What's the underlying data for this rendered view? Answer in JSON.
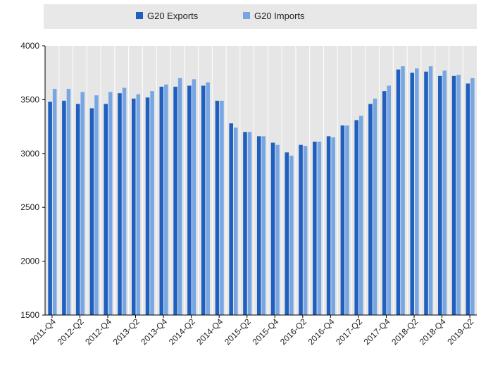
{
  "chart_data": {
    "type": "bar",
    "title": "",
    "xlabel": "",
    "ylabel": "",
    "ylim": [
      1500,
      4000
    ],
    "yticks": [
      1500,
      2000,
      2500,
      3000,
      3500,
      4000
    ],
    "grid": "vertical",
    "legend_position": "top",
    "categories": [
      "2011-Q4",
      "2012-Q1",
      "2012-Q2",
      "2012-Q3",
      "2012-Q4",
      "2013-Q1",
      "2013-Q2",
      "2013-Q3",
      "2013-Q4",
      "2014-Q1",
      "2014-Q2",
      "2014-Q3",
      "2014-Q4",
      "2015-Q1",
      "2015-Q2",
      "2015-Q3",
      "2015-Q4",
      "2016-Q1",
      "2016-Q2",
      "2016-Q3",
      "2016-Q4",
      "2017-Q1",
      "2017-Q2",
      "2017-Q3",
      "2017-Q4",
      "2018-Q1",
      "2018-Q2",
      "2018-Q3",
      "2018-Q4",
      "2019-Q1",
      "2019-Q2"
    ],
    "tick_labels": [
      "2011-Q4",
      "2012-Q2",
      "2012-Q4",
      "2013-Q2",
      "2013-Q4",
      "2014-Q2",
      "2014-Q4",
      "2015-Q2",
      "2015-Q4",
      "2016-Q2",
      "2016-Q4",
      "2017-Q2",
      "2017-Q4",
      "2018-Q2",
      "2018-Q4",
      "2019-Q2"
    ],
    "series": [
      {
        "name": "G20 Exports",
        "color": "#1f5fbf",
        "values": [
          3480,
          3490,
          3460,
          3420,
          3460,
          3560,
          3510,
          3520,
          3620,
          3620,
          3630,
          3630,
          3490,
          3280,
          3200,
          3160,
          3100,
          3010,
          3080,
          3110,
          3160,
          3260,
          3310,
          3460,
          3580,
          3780,
          3750,
          3760,
          3720,
          3720,
          3650
        ]
      },
      {
        "name": "G20 Imports",
        "color": "#77a6e3",
        "values": [
          3600,
          3600,
          3570,
          3540,
          3570,
          3610,
          3550,
          3580,
          3640,
          3700,
          3690,
          3660,
          3490,
          3240,
          3200,
          3160,
          3080,
          2980,
          3070,
          3110,
          3150,
          3260,
          3350,
          3510,
          3630,
          3810,
          3790,
          3810,
          3770,
          3730,
          3700
        ]
      }
    ]
  }
}
